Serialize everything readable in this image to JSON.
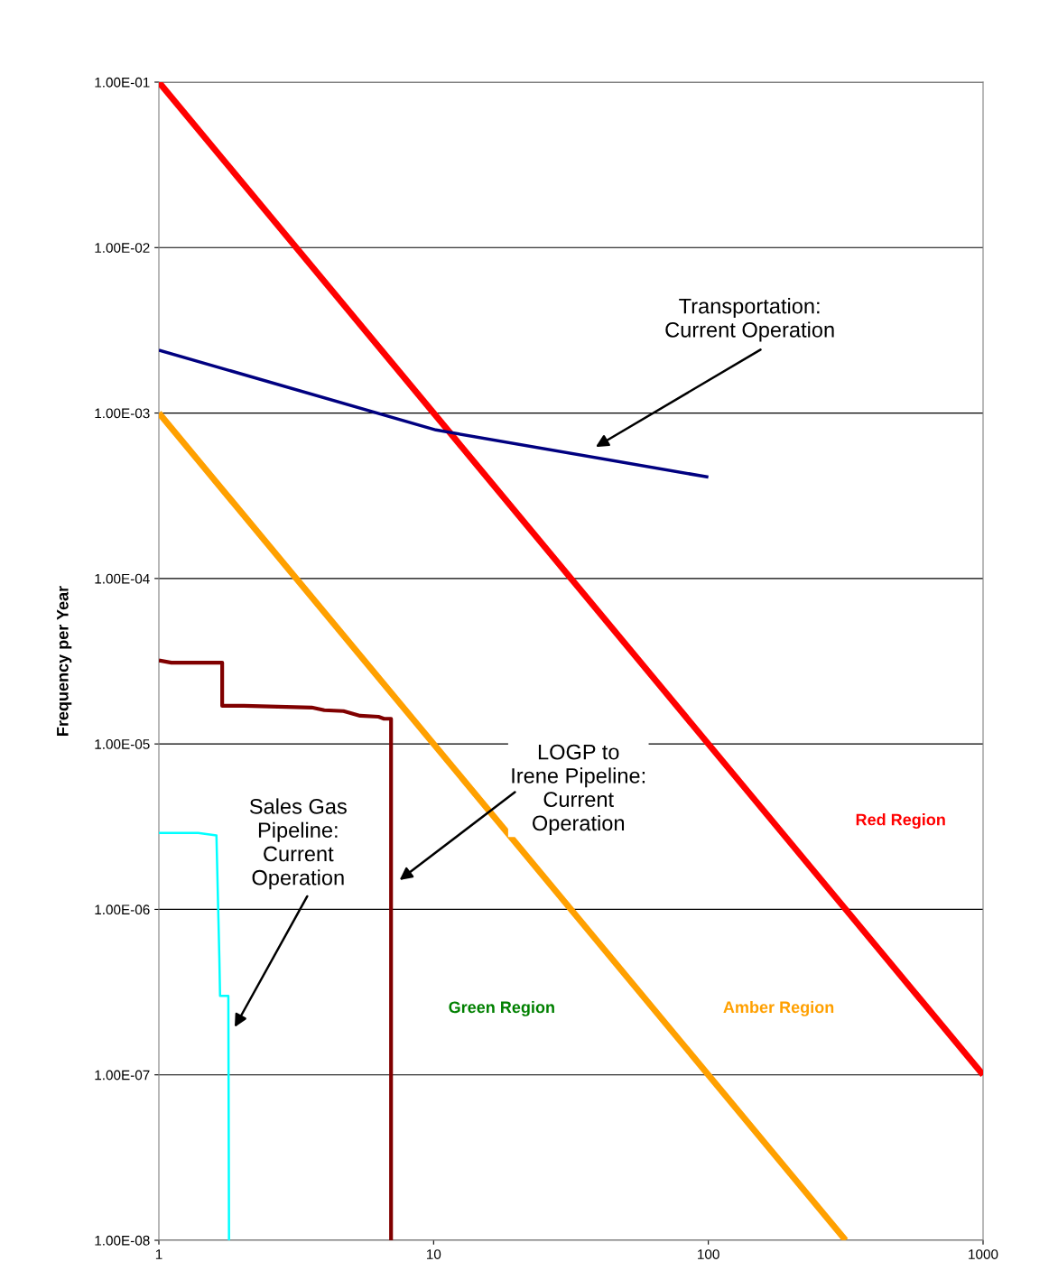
{
  "chart_data": {
    "type": "line",
    "ylabel": "Frequency per Year",
    "log": "xy",
    "grid": "y",
    "marker": "none",
    "line_style": "solid",
    "xlim": [
      1,
      1000
    ],
    "xticks": [
      1,
      10,
      100,
      1000
    ],
    "ylim": [
      1e-08,
      0.1
    ],
    "yticks": [
      {
        "value": 1e-08,
        "label": "1.00E-08"
      },
      {
        "value": 1e-07,
        "label": "1.00E-07"
      },
      {
        "value": 1e-06,
        "label": "1.00E-06"
      },
      {
        "value": 1e-05,
        "label": "1.00E-05"
      },
      {
        "value": 0.0001,
        "label": "1.00E-04"
      },
      {
        "value": 0.001,
        "label": "1.00E-03"
      },
      {
        "value": 0.01,
        "label": "1.00E-02"
      },
      {
        "value": 0.1,
        "label": "1.00E-01"
      }
    ],
    "series": [
      {
        "color": "#ff0000",
        "x": [
          1,
          1000
        ],
        "values": [
          0.1,
          1e-07
        ]
      },
      {
        "color": "#ffa000",
        "x": [
          1,
          316
        ],
        "values": [
          0.001,
          1e-08
        ]
      },
      {
        "color": "#000080",
        "x": [
          1,
          10.2,
          100
        ],
        "values": [
          0.0024,
          0.00079,
          0.00041
        ]
      },
      {
        "color": "#800000",
        "x": [
          1,
          1.11,
          1.7,
          1.7,
          2.04,
          3.6,
          4.0,
          4.7,
          5.4,
          6.3,
          6.6,
          7.0,
          7.0
        ],
        "values": [
          3.2e-05,
          3.1e-05,
          3.1e-05,
          1.7e-05,
          1.7e-05,
          1.66e-05,
          1.6e-05,
          1.58e-05,
          1.48e-05,
          1.46e-05,
          1.42e-05,
          1.42e-05,
          1e-08
        ]
      },
      {
        "color": "#00ffff",
        "x": [
          1,
          1.39,
          1.62,
          1.66,
          1.67,
          1.79,
          1.8
        ],
        "values": [
          2.9e-06,
          2.9e-06,
          2.8e-06,
          5.1e-07,
          3e-07,
          3e-07,
          1e-08
        ]
      }
    ],
    "annotations": [
      "Transportation:\nCurrent Operation",
      "LOGP to\nIrene Pipeline:\nCurrent\nOperation",
      "Sales Gas\nPipeline:\nCurrent\nOperation",
      "Red Region",
      "Green Region",
      "Amber Region"
    ]
  }
}
